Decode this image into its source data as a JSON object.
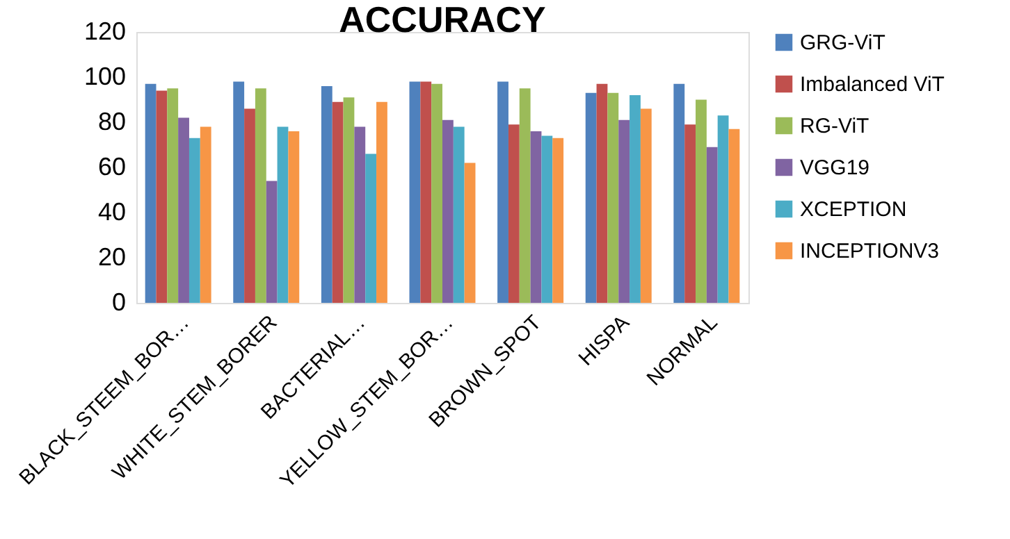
{
  "chart_data": {
    "type": "bar",
    "title": "ACCURACY",
    "categories": [
      "BLACK_STEEM_BOR…",
      "WHITE_STEM_BORER",
      "BACTERIAL…",
      "YELLOW_STEM_BOR…",
      "BROWN_SPOT",
      "HISPA",
      "NORMAL"
    ],
    "series": [
      {
        "name": "GRG-ViT",
        "color": "#4f81bd",
        "values": [
          97,
          98,
          96,
          98,
          98,
          93,
          97
        ]
      },
      {
        "name": "Imbalanced ViT",
        "color": "#c0504d",
        "values": [
          94,
          86,
          89,
          98,
          79,
          97,
          79
        ]
      },
      {
        "name": "RG-ViT",
        "color": "#9bbb59",
        "values": [
          95,
          95,
          91,
          97,
          95,
          93,
          90
        ]
      },
      {
        "name": "VGG19",
        "color": "#8064a2",
        "values": [
          82,
          54,
          78,
          81,
          76,
          81,
          69
        ]
      },
      {
        "name": "XCEPTION",
        "color": "#4bacc6",
        "values": [
          73,
          78,
          66,
          78,
          74,
          92,
          83
        ]
      },
      {
        "name": "INCEPTIONV3",
        "color": "#f79646",
        "values": [
          78,
          76,
          89,
          62,
          73,
          86,
          77
        ]
      }
    ],
    "ylim": [
      0,
      120
    ],
    "yticks": [
      0,
      20,
      40,
      60,
      80,
      100,
      120
    ],
    "grid": false,
    "legend": "right"
  }
}
